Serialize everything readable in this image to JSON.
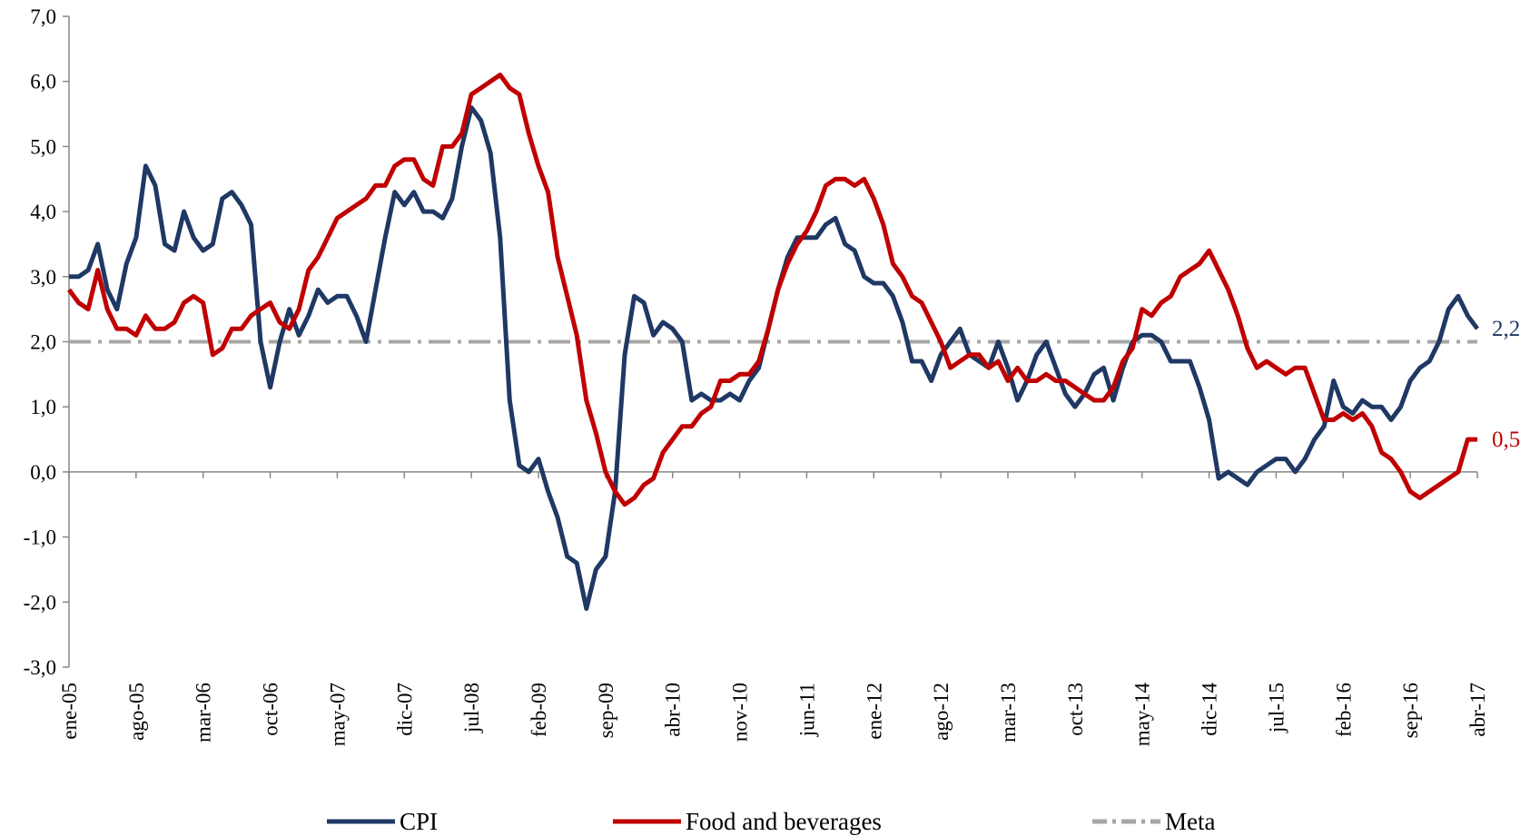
{
  "chart_data": {
    "type": "line",
    "categories": [
      "ene-05",
      null,
      null,
      null,
      null,
      null,
      null,
      "ago-05",
      null,
      null,
      null,
      null,
      null,
      null,
      "mar-06",
      null,
      null,
      null,
      null,
      null,
      null,
      "oct-06",
      null,
      null,
      null,
      null,
      null,
      null,
      "may-07",
      null,
      null,
      null,
      null,
      null,
      null,
      "dic-07",
      null,
      null,
      null,
      null,
      null,
      null,
      "jul-08",
      null,
      null,
      null,
      null,
      null,
      null,
      "feb-09",
      null,
      null,
      null,
      null,
      null,
      null,
      "sep-09",
      null,
      null,
      null,
      null,
      null,
      null,
      "abr-10",
      null,
      null,
      null,
      null,
      null,
      null,
      "nov-10",
      null,
      null,
      null,
      null,
      null,
      null,
      "jun-11",
      null,
      null,
      null,
      null,
      null,
      null,
      "ene-12",
      null,
      null,
      null,
      null,
      null,
      null,
      "ago-12",
      null,
      null,
      null,
      null,
      null,
      null,
      "mar-13",
      null,
      null,
      null,
      null,
      null,
      null,
      "oct-13",
      null,
      null,
      null,
      null,
      null,
      null,
      "may-14",
      null,
      null,
      null,
      null,
      null,
      null,
      "dic-14",
      null,
      null,
      null,
      null,
      null,
      null,
      "jul-15",
      null,
      null,
      null,
      null,
      null,
      null,
      "feb-16",
      null,
      null,
      null,
      null,
      null,
      null,
      "sep-16",
      null,
      null,
      null,
      null,
      null,
      null,
      "abr-17"
    ],
    "series": [
      {
        "name": "CPI",
        "color": "#1f3864",
        "last_label": "2,2",
        "values": [
          3.0,
          3.0,
          3.1,
          3.5,
          2.8,
          2.5,
          3.2,
          3.6,
          4.7,
          4.4,
          3.5,
          3.4,
          4.0,
          3.6,
          3.4,
          3.5,
          4.2,
          4.3,
          4.1,
          3.8,
          2.0,
          1.3,
          2.0,
          2.5,
          2.1,
          2.4,
          2.8,
          2.6,
          2.7,
          2.7,
          2.4,
          2.0,
          2.8,
          3.6,
          4.3,
          4.1,
          4.3,
          4.0,
          4.0,
          3.9,
          4.2,
          5.0,
          5.6,
          5.4,
          4.9,
          3.6,
          1.1,
          0.1,
          0.0,
          0.2,
          -0.3,
          -0.7,
          -1.3,
          -1.4,
          -2.1,
          -1.5,
          -1.3,
          -0.3,
          1.8,
          2.7,
          2.6,
          2.1,
          2.3,
          2.2,
          2.0,
          1.1,
          1.2,
          1.1,
          1.1,
          1.2,
          1.1,
          1.4,
          1.6,
          2.2,
          2.8,
          3.3,
          3.6,
          3.6,
          3.6,
          3.8,
          3.9,
          3.5,
          3.4,
          3.0,
          2.9,
          2.9,
          2.7,
          2.3,
          1.7,
          1.7,
          1.4,
          1.8,
          2.0,
          2.2,
          1.8,
          1.7,
          1.6,
          2.0,
          1.6,
          1.1,
          1.4,
          1.8,
          2.0,
          1.6,
          1.2,
          1.0,
          1.2,
          1.5,
          1.6,
          1.1,
          1.6,
          2.0,
          2.1,
          2.1,
          2.0,
          1.7,
          1.7,
          1.7,
          1.3,
          0.8,
          -0.1,
          0.0,
          -0.1,
          -0.2,
          0.0,
          0.1,
          0.2,
          0.2,
          0.0,
          0.2,
          0.5,
          0.7,
          1.4,
          1.0,
          0.9,
          1.1,
          1.0,
          1.0,
          0.8,
          1.0,
          1.4,
          1.6,
          1.7,
          2.0,
          2.5,
          2.7,
          2.4,
          2.2
        ]
      },
      {
        "name": "Food and beverages",
        "color": "#c00000",
        "last_label": "0,5",
        "values": [
          2.8,
          2.6,
          2.5,
          3.1,
          2.5,
          2.2,
          2.2,
          2.1,
          2.4,
          2.2,
          2.2,
          2.3,
          2.6,
          2.7,
          2.6,
          1.8,
          1.9,
          2.2,
          2.2,
          2.4,
          2.5,
          2.6,
          2.3,
          2.2,
          2.5,
          3.1,
          3.3,
          3.6,
          3.9,
          4.0,
          4.1,
          4.2,
          4.4,
          4.4,
          4.7,
          4.8,
          4.8,
          4.5,
          4.4,
          5.0,
          5.0,
          5.2,
          5.8,
          5.9,
          6.0,
          6.1,
          5.9,
          5.8,
          5.2,
          4.7,
          4.3,
          3.3,
          2.7,
          2.1,
          1.1,
          0.6,
          0.0,
          -0.3,
          -0.5,
          -0.4,
          -0.2,
          -0.1,
          0.3,
          0.5,
          0.7,
          0.7,
          0.9,
          1.0,
          1.4,
          1.4,
          1.5,
          1.5,
          1.7,
          2.2,
          2.8,
          3.2,
          3.5,
          3.7,
          4.0,
          4.4,
          4.5,
          4.5,
          4.4,
          4.5,
          4.2,
          3.8,
          3.2,
          3.0,
          2.7,
          2.6,
          2.3,
          2.0,
          1.6,
          1.7,
          1.8,
          1.8,
          1.6,
          1.7,
          1.4,
          1.6,
          1.4,
          1.4,
          1.5,
          1.4,
          1.4,
          1.3,
          1.2,
          1.1,
          1.1,
          1.3,
          1.7,
          1.9,
          2.5,
          2.4,
          2.6,
          2.7,
          3.0,
          3.1,
          3.2,
          3.4,
          3.1,
          2.8,
          2.4,
          1.9,
          1.6,
          1.7,
          1.6,
          1.5,
          1.6,
          1.6,
          1.2,
          0.8,
          0.8,
          0.9,
          0.8,
          0.9,
          0.7,
          0.3,
          0.2,
          0.0,
          -0.3,
          -0.4,
          -0.3,
          -0.2,
          -0.1,
          0.0,
          0.5,
          0.5
        ]
      }
    ],
    "reference_line": {
      "name": "Meta",
      "value": 2,
      "color": "#a6a6a6"
    },
    "ylim": [
      -3,
      7
    ],
    "yticks": [
      {
        "value": -3,
        "label": "-3,0"
      },
      {
        "value": -2,
        "label": "-2,0"
      },
      {
        "value": -1,
        "label": "-1,0"
      },
      {
        "value": 0,
        "label": "0,0"
      },
      {
        "value": 1,
        "label": "1,0"
      },
      {
        "value": 2,
        "label": "2,0"
      },
      {
        "value": 3,
        "label": "3,0"
      },
      {
        "value": 4,
        "label": "4,0"
      },
      {
        "value": 5,
        "label": "5,0"
      },
      {
        "value": 6,
        "label": "6,0"
      },
      {
        "value": 7,
        "label": "7,0"
      }
    ],
    "legend": "bottom"
  }
}
